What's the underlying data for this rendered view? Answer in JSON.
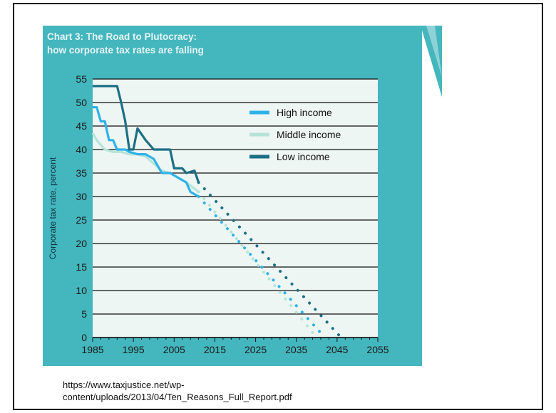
{
  "chart_data": {
    "type": "line",
    "title": "Chart 3: The Road to Plutocracy:",
    "subtitle": "how corporate tax rates are falling",
    "xlabel": "",
    "ylabel": "Corporate tax rate, percent",
    "xlim": [
      1985,
      2055
    ],
    "ylim": [
      0,
      55
    ],
    "x_ticks": [
      1985,
      1995,
      2005,
      2015,
      2025,
      2035,
      2045,
      2055
    ],
    "y_ticks": [
      0,
      5,
      10,
      15,
      20,
      25,
      30,
      35,
      40,
      45,
      50,
      55
    ],
    "grid": "horizontal",
    "legend_position": "top-right",
    "series": [
      {
        "name": "High income",
        "color": "#2fb1e8",
        "values": [
          [
            1985,
            49
          ],
          [
            1986,
            49
          ],
          [
            1987,
            46
          ],
          [
            1988,
            46
          ],
          [
            1989,
            42
          ],
          [
            1990,
            42
          ],
          [
            1991,
            40
          ],
          [
            1993,
            40
          ],
          [
            1994,
            39.5
          ],
          [
            1996,
            39
          ],
          [
            1998,
            39
          ],
          [
            2000,
            38
          ],
          [
            2002,
            35
          ],
          [
            2004,
            35
          ],
          [
            2006,
            34
          ],
          [
            2008,
            33
          ],
          [
            2009,
            31
          ],
          [
            2011,
            30
          ]
        ],
        "projection": [
          [
            2011,
            30
          ],
          [
            2042,
            0
          ]
        ]
      },
      {
        "name": "Middle income",
        "color": "#b6e3d8",
        "values": [
          [
            1985,
            43.5
          ],
          [
            1986,
            42
          ],
          [
            1988,
            40
          ],
          [
            1990,
            39.5
          ],
          [
            1992,
            39.5
          ],
          [
            1994,
            39
          ],
          [
            1996,
            39
          ],
          [
            1998,
            38.5
          ],
          [
            2000,
            37
          ],
          [
            2002,
            35.5
          ],
          [
            2004,
            35
          ],
          [
            2006,
            34
          ],
          [
            2008,
            33
          ],
          [
            2011,
            31
          ]
        ],
        "projection": [
          [
            2011,
            31
          ],
          [
            2040,
            0
          ]
        ]
      },
      {
        "name": "Low income",
        "color": "#1c6f85",
        "values": [
          [
            1985,
            53.5
          ],
          [
            1987,
            53.5
          ],
          [
            1989,
            53.5
          ],
          [
            1991,
            53.5
          ],
          [
            1992,
            50
          ],
          [
            1993,
            46
          ],
          [
            1994,
            40
          ],
          [
            1995,
            40
          ],
          [
            1996,
            44.5
          ],
          [
            1998,
            42
          ],
          [
            2000,
            40
          ],
          [
            2002,
            40
          ],
          [
            2004,
            40
          ],
          [
            2005,
            36
          ],
          [
            2007,
            36
          ],
          [
            2008,
            35
          ],
          [
            2010,
            35.5
          ],
          [
            2011,
            33
          ]
        ],
        "projection": [
          [
            2011,
            33
          ],
          [
            2046,
            0
          ]
        ]
      }
    ]
  },
  "source_text": "https://www.taxjustice.net/wp-content/uploads/2013/04/Ten_Reasons_Full_Report.pdf",
  "source_lines": [
    "https://www.taxjustice.net/wp-",
    "content/uploads/2013/04/Ten_Reasons_Full_Report.pdf"
  ],
  "colors": {
    "figure_background": "#44b6be",
    "plot_background": "#edf6f3",
    "title_text": "#e6f5f5",
    "gridline": "#111111"
  }
}
